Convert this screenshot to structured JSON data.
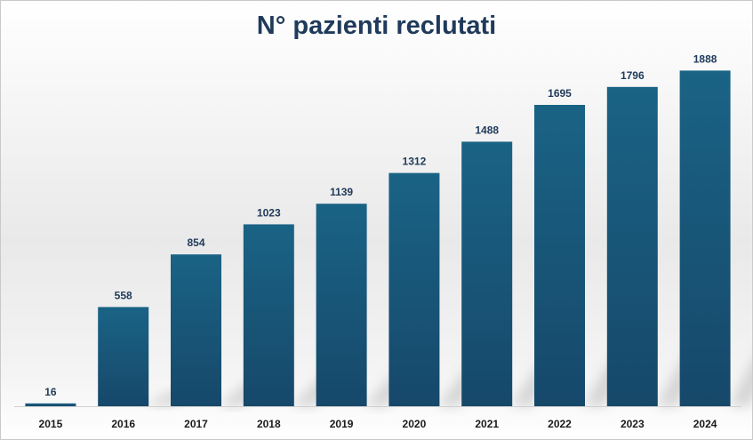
{
  "chart_data": {
    "type": "bar",
    "title": "N° pazienti reclutati",
    "categories": [
      "2015",
      "2016",
      "2017",
      "2018",
      "2019",
      "2020",
      "2021",
      "2022",
      "2023",
      "2024"
    ],
    "values": [
      16,
      558,
      854,
      1023,
      1139,
      1312,
      1488,
      1695,
      1796,
      1888
    ],
    "ylim": [
      0,
      2000
    ],
    "grid": false,
    "legend": "none",
    "xlabel": "",
    "ylabel": "",
    "colors": {
      "bar_top": "#1a6385",
      "bar_bottom": "#16486a",
      "value_label": "#1f3a5a",
      "axis_label": "#1a1a1a",
      "axis_line": "#d0d0d0"
    }
  }
}
